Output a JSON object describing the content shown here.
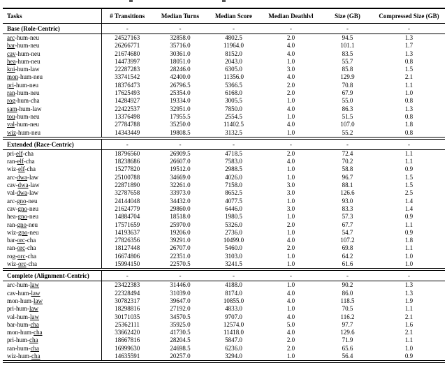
{
  "table": {
    "columns": [
      "Tasks",
      "# Transitions",
      "Median Turns",
      "Median Score",
      "Median Deathlvl",
      "Size (GB)",
      "Compressed Size (GB)"
    ],
    "sections": [
      {
        "label": "Base (Role-Centric)",
        "placeholder": "-",
        "underline_segment": 0,
        "rows": [
          {
            "task": [
              "arc",
              "hum",
              "neu"
            ],
            "values": [
              "24527163",
              "32858.0",
              "4802.5",
              "2.0",
              "94.5",
              "1.3"
            ]
          },
          {
            "task": [
              "bar",
              "hum",
              "neu"
            ],
            "values": [
              "26266771",
              "35716.0",
              "11964.0",
              "4.0",
              "101.1",
              "1.7"
            ]
          },
          {
            "task": [
              "cav",
              "hum",
              "neu"
            ],
            "values": [
              "21674680",
              "30361.0",
              "8152.0",
              "4.0",
              "83.5",
              "1.3"
            ]
          },
          {
            "task": [
              "hea",
              "hum",
              "neu"
            ],
            "values": [
              "14473997",
              "18051.0",
              "2043.0",
              "1.0",
              "55.7",
              "0.8"
            ]
          },
          {
            "task": [
              "kni",
              "hum",
              "law"
            ],
            "values": [
              "22287283",
              "28246.0",
              "6305.0",
              "3.0",
              "85.8",
              "1.5"
            ]
          },
          {
            "task": [
              "mon",
              "hum",
              "neu"
            ],
            "values": [
              "33741542",
              "42400.0",
              "11356.0",
              "4.0",
              "129.9",
              "2.1"
            ]
          },
          {
            "task": [
              "pri",
              "hum",
              "neu"
            ],
            "values": [
              "18376473",
              "26796.5",
              "5366.5",
              "2.0",
              "70.8",
              "1.1"
            ]
          },
          {
            "task": [
              "ran",
              "hum",
              "neu"
            ],
            "values": [
              "17625493",
              "25354.0",
              "6168.0",
              "2.0",
              "67.9",
              "1.0"
            ]
          },
          {
            "task": [
              "rog",
              "hum",
              "cha"
            ],
            "values": [
              "14284927",
              "19334.0",
              "3005.5",
              "1.0",
              "55.0",
              "0.8"
            ]
          },
          {
            "task": [
              "sam",
              "hum",
              "law"
            ],
            "values": [
              "22422537",
              "32951.0",
              "7850.0",
              "4.0",
              "86.3",
              "1.3"
            ]
          },
          {
            "task": [
              "tou",
              "hum",
              "neu"
            ],
            "values": [
              "13376498",
              "17955.5",
              "2554.5",
              "1.0",
              "51.5",
              "0.8"
            ]
          },
          {
            "task": [
              "val",
              "hum",
              "neu"
            ],
            "values": [
              "27784788",
              "35250.0",
              "11402.5",
              "4.0",
              "107.0",
              "1.8"
            ]
          },
          {
            "task": [
              "wiz",
              "hum",
              "neu"
            ],
            "values": [
              "14343449",
              "19808.5",
              "3132.5",
              "1.0",
              "55.2",
              "0.8"
            ]
          }
        ]
      },
      {
        "label": "Extended (Race-Centric)",
        "placeholder": "-",
        "underline_segment": 1,
        "rows": [
          {
            "task": [
              "pri",
              "elf",
              "cha"
            ],
            "values": [
              "18796560",
              "26909.5",
              "4718.5",
              "2.0",
              "72.4",
              "1.1"
            ]
          },
          {
            "task": [
              "ran",
              "elf",
              "cha"
            ],
            "values": [
              "18238686",
              "26607.0",
              "7583.0",
              "4.0",
              "70.2",
              "1.1"
            ]
          },
          {
            "task": [
              "wiz",
              "elf",
              "cha"
            ],
            "values": [
              "15277820",
              "19512.0",
              "2988.5",
              "1.0",
              "58.8",
              "0.9"
            ]
          },
          {
            "task": [
              "arc",
              "dwa",
              "law"
            ],
            "values": [
              "25100788",
              "34669.0",
              "4026.0",
              "1.0",
              "96.7",
              "1.5"
            ]
          },
          {
            "task": [
              "cav",
              "dwa",
              "law"
            ],
            "values": [
              "22871890",
              "32261.0",
              "7158.0",
              "3.0",
              "88.1",
              "1.5"
            ]
          },
          {
            "task": [
              "val",
              "dwa",
              "law"
            ],
            "values": [
              "32787658",
              "33973.0",
              "8652.5",
              "3.0",
              "126.6",
              "2.5"
            ]
          },
          {
            "task": [
              "arc",
              "gno",
              "neu"
            ],
            "values": [
              "24144048",
              "34432.0",
              "4077.5",
              "1.0",
              "93.0",
              "1.4"
            ]
          },
          {
            "task": [
              "cav",
              "gno",
              "neu"
            ],
            "values": [
              "21624779",
              "29860.0",
              "6446.0",
              "3.0",
              "83.3",
              "1.4"
            ]
          },
          {
            "task": [
              "hea",
              "gno",
              "neu"
            ],
            "values": [
              "14884704",
              "18518.0",
              "1980.5",
              "1.0",
              "57.3",
              "0.9"
            ]
          },
          {
            "task": [
              "ran",
              "gno",
              "neu"
            ],
            "values": [
              "17571659",
              "25970.0",
              "5326.0",
              "2.0",
              "67.7",
              "1.1"
            ]
          },
          {
            "task": [
              "wiz",
              "gno",
              "neu"
            ],
            "values": [
              "14193637",
              "19206.0",
              "2736.0",
              "1.0",
              "54.7",
              "0.9"
            ]
          },
          {
            "task": [
              "bar",
              "orc",
              "cha"
            ],
            "values": [
              "27826356",
              "39291.0",
              "10499.0",
              "4.0",
              "107.2",
              "1.8"
            ]
          },
          {
            "task": [
              "ran",
              "orc",
              "cha"
            ],
            "values": [
              "18127448",
              "26707.0",
              "5460.0",
              "2.0",
              "69.8",
              "1.1"
            ]
          },
          {
            "task": [
              "rog",
              "orc",
              "cha"
            ],
            "values": [
              "16674806",
              "22351.0",
              "3103.0",
              "1.0",
              "64.2",
              "1.0"
            ]
          },
          {
            "task": [
              "wiz",
              "orc",
              "cha"
            ],
            "values": [
              "15994150",
              "22570.5",
              "3241.5",
              "1.0",
              "61.6",
              "1.0"
            ]
          }
        ]
      },
      {
        "label": "Complete (Alignment-Centric)",
        "placeholder": "-",
        "underline_segment": 2,
        "rows": [
          {
            "task": [
              "arc",
              "hum",
              "law"
            ],
            "values": [
              "23422383",
              "31446.0",
              "4188.0",
              "1.0",
              "90.2",
              "1.3"
            ]
          },
          {
            "task": [
              "cav",
              "hum",
              "law"
            ],
            "values": [
              "22328494",
              "31039.0",
              "8174.0",
              "4.0",
              "86.0",
              "1.3"
            ]
          },
          {
            "task": [
              "mon",
              "hum",
              "law"
            ],
            "values": [
              "30782317",
              "39647.0",
              "10855.0",
              "4.0",
              "118.5",
              "1.9"
            ]
          },
          {
            "task": [
              "pri",
              "hum",
              "law"
            ],
            "values": [
              "18298816",
              "27192.0",
              "4833.0",
              "1.0",
              "70.5",
              "1.1"
            ]
          },
          {
            "task": [
              "val",
              "hum",
              "law"
            ],
            "values": [
              "30171035",
              "34570.5",
              "9707.0",
              "4.0",
              "116.2",
              "2.1"
            ]
          },
          {
            "task": [
              "bar",
              "hum",
              "cha"
            ],
            "values": [
              "25362111",
              "35925.0",
              "12574.0",
              "5.0",
              "97.7",
              "1.6"
            ]
          },
          {
            "task": [
              "mon",
              "hum",
              "cha"
            ],
            "values": [
              "33662420",
              "41730.5",
              "11418.0",
              "4.0",
              "129.6",
              "2.1"
            ]
          },
          {
            "task": [
              "pri",
              "hum",
              "cha"
            ],
            "values": [
              "18667816",
              "28204.5",
              "5847.0",
              "2.0",
              "71.9",
              "1.1"
            ]
          },
          {
            "task": [
              "ran",
              "hum",
              "cha"
            ],
            "values": [
              "16999630",
              "24698.5",
              "6236.0",
              "2.0",
              "65.6",
              "1.0"
            ]
          },
          {
            "task": [
              "wiz",
              "hum",
              "cha"
            ],
            "values": [
              "14635591",
              "20257.0",
              "3294.0",
              "1.0",
              "56.4",
              "0.9"
            ]
          }
        ]
      }
    ]
  }
}
